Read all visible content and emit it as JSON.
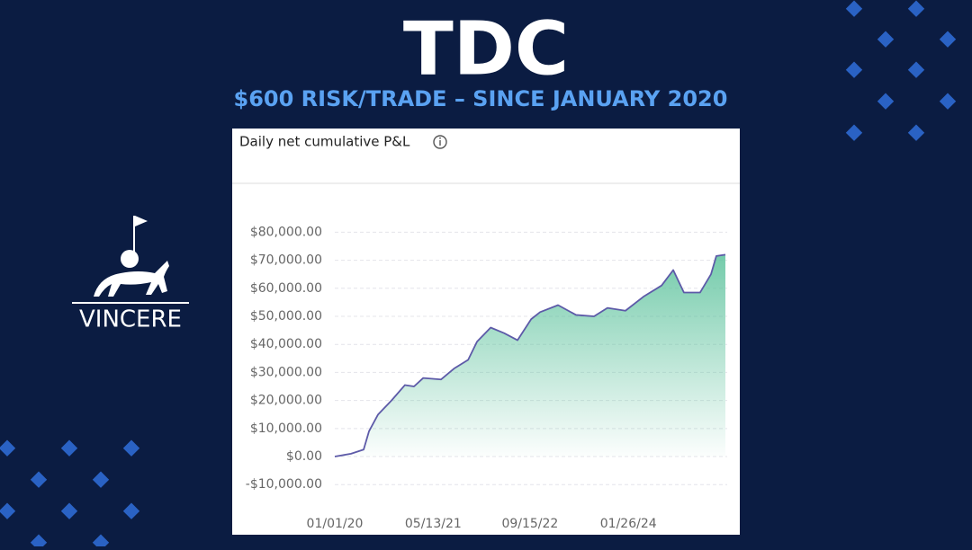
{
  "header": {
    "title": "TDC",
    "subtitle": "$600 RISK/TRADE – SINCE JANUARY 2020"
  },
  "logo": {
    "text": "VINCERE"
  },
  "chart_data": {
    "type": "line",
    "title": "Daily net cumulative P&L",
    "x": [
      "01/01/20",
      "03/23/20",
      "05/26/20",
      "06/22/20",
      "08/07/20",
      "10/14/20",
      "12/21/20",
      "02/05/21",
      "03/23/21",
      "06/22/21",
      "08/29/21",
      "11/06/21",
      "12/21/21",
      "02/28/22",
      "05/07/22",
      "07/14/22",
      "09/21/22",
      "11/05/22",
      "02/04/23",
      "05/06/23",
      "08/05/23",
      "10/12/23",
      "01/11/24",
      "04/11/24",
      "07/12/24",
      "09/09/24",
      "11/02/24",
      "01/23/25",
      "03/19/25",
      "04/15/25",
      "05/31/25"
    ],
    "values": [
      0,
      1000,
      2500,
      9000,
      15000,
      20000,
      25500,
      25000,
      28000,
      27500,
      31500,
      34500,
      41000,
      46000,
      44000,
      41500,
      49000,
      51500,
      54000,
      50500,
      50000,
      53000,
      52000,
      57000,
      61000,
      66500,
      58500,
      58500,
      65000,
      71500,
      72000
    ],
    "color": "#5d5aa8",
    "fill": "#5cc29c",
    "xlim": [
      "01/01/20",
      "05/31/25"
    ],
    "xticks": [
      "01/01/20",
      "05/13/21",
      "09/15/22",
      "01/26/24"
    ],
    "ylim": [
      -13000,
      84000
    ],
    "yticks": [
      {
        "value": -10000,
        "label": "-$10,000.00"
      },
      {
        "value": 0,
        "label": "$0.00"
      },
      {
        "value": 10000,
        "label": "$10,000.00"
      },
      {
        "value": 20000,
        "label": "$20,000.00"
      },
      {
        "value": 30000,
        "label": "$30,000.00"
      },
      {
        "value": 40000,
        "label": "$40,000.00"
      },
      {
        "value": 50000,
        "label": "$50,000.00"
      },
      {
        "value": 60000,
        "label": "$60,000.00"
      },
      {
        "value": 70000,
        "label": "$70,000.00"
      },
      {
        "value": 80000,
        "label": "$80,000.00"
      }
    ],
    "grid": true
  }
}
